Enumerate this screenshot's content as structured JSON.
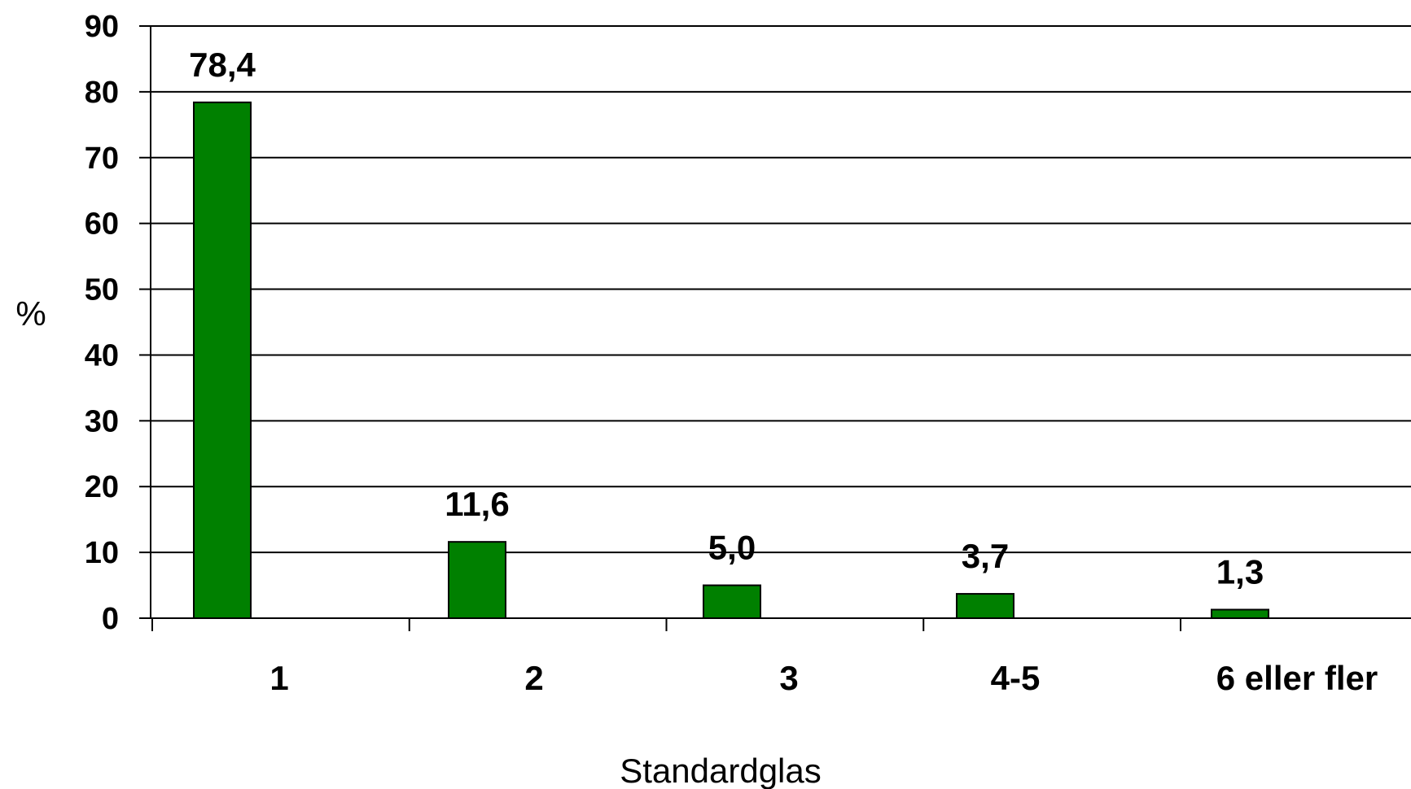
{
  "chart_data": {
    "type": "bar",
    "categories": [
      "1",
      "2",
      "3",
      "4-5",
      "6 eller fler"
    ],
    "values": [
      78.4,
      11.6,
      5.0,
      3.7,
      1.3
    ],
    "data_labels": [
      "78,4",
      "11,6",
      "5,0",
      "3,7",
      "1,3"
    ],
    "title": "",
    "xlabel": "Standardglas",
    "ylabel": "%",
    "ylim": [
      0,
      90
    ],
    "yticks": [
      0,
      10,
      20,
      30,
      40,
      50,
      60,
      70,
      80,
      90
    ],
    "grid": true,
    "legend": "none",
    "bar_color": "#008000"
  }
}
